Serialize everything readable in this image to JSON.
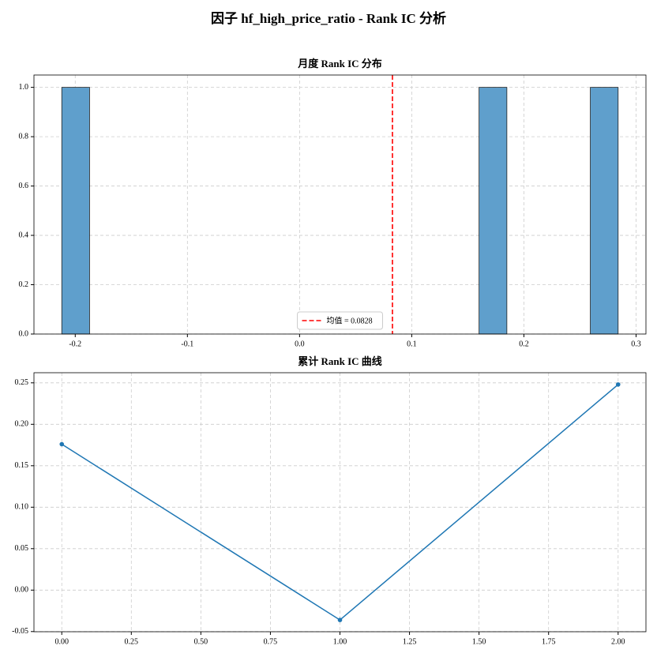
{
  "title": "因子 hf_high_price_ratio - Rank IC 分析",
  "chart_data": [
    {
      "type": "histogram",
      "title": "月度 Rank IC 分布",
      "bins": [
        -0.212,
        -0.1872,
        -0.1624,
        -0.1376,
        -0.1128,
        -0.088,
        -0.0632,
        -0.0384,
        -0.0136,
        0.0112,
        0.036,
        0.0608,
        0.0856,
        0.1104,
        0.1352,
        0.16,
        0.1848,
        0.2096,
        0.2344,
        0.2592,
        0.284
      ],
      "counts": [
        1,
        0,
        0,
        0,
        0,
        0,
        0,
        0,
        0,
        0,
        0,
        0,
        0,
        0,
        0,
        1,
        0,
        0,
        0,
        1
      ],
      "color": "#5f9fcc",
      "xlim": [
        -0.2368,
        0.3088
      ],
      "ylim": [
        0,
        1.05
      ],
      "xticks": [
        -0.2,
        -0.1,
        {
          "value": 0,
          "label": "0.0"
        },
        0.1,
        0.2,
        0.3
      ],
      "yticks": [
        {
          "value": 0,
          "label": "0.0"
        },
        0.2,
        0.4,
        0.6,
        0.8,
        {
          "value": 1,
          "label": "1.0"
        }
      ],
      "mean_line": {
        "value": 0.0828,
        "label": "均值 = 0.0828",
        "color": "#ff0000"
      },
      "legend": "lower center",
      "grid": true
    },
    {
      "type": "line",
      "title": "累计 Rank IC 曲线",
      "x": [
        0,
        1,
        2
      ],
      "series": [
        {
          "color": "#1f77b4",
          "values": [
            0.176,
            -0.036,
            0.248
          ]
        }
      ],
      "xlim": [
        -0.1,
        2.1
      ],
      "ylim": [
        -0.0502,
        0.2622
      ],
      "xticks": [
        {
          "value": 0,
          "label": "0.00"
        },
        0.25,
        {
          "value": 0.5,
          "label": "0.50"
        },
        0.75,
        {
          "value": 1,
          "label": "1.00"
        },
        1.25,
        {
          "value": 1.5,
          "label": "1.50"
        },
        1.75,
        {
          "value": 2,
          "label": "2.00"
        }
      ],
      "yticks": [
        -0.05,
        {
          "value": 0,
          "label": "0.00"
        },
        0.05,
        {
          "value": 0.1,
          "label": "0.10"
        },
        0.15,
        {
          "value": 0.2,
          "label": "0.20"
        },
        0.25
      ],
      "grid": true
    }
  ]
}
